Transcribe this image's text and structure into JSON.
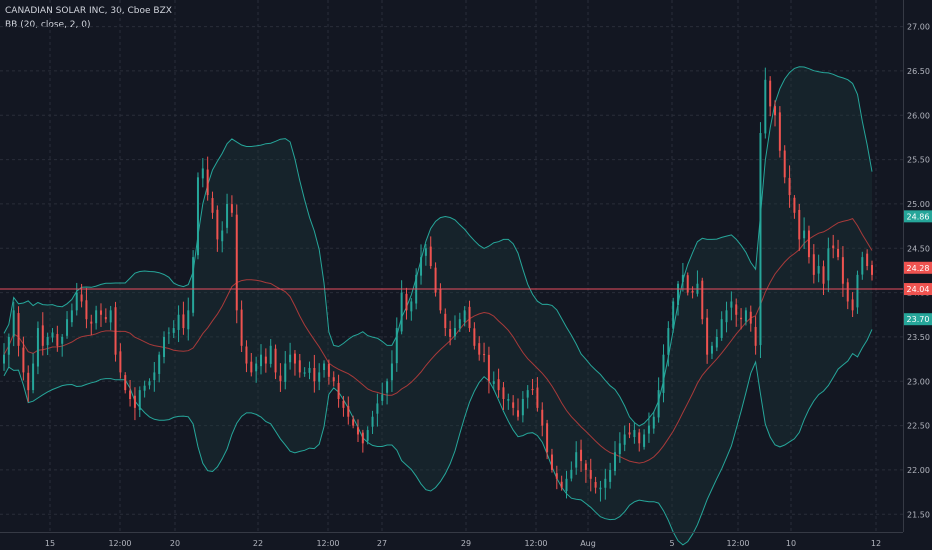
{
  "legend": {
    "symbol": "CANADIAN SOLAR INC, 30, Cboe BZX",
    "indicator": "BB (20, close, 2, 0)"
  },
  "colors": {
    "background": "#131722",
    "grid": "#2a2e39",
    "up": "#26a69a",
    "down": "#ef5350",
    "band": "#26a69a",
    "basis": "#a83a3a",
    "band_fill": "#1d3a3c",
    "price_line": "#e84c5f",
    "axis_text": "#b2b5be"
  },
  "chart_data": {
    "type": "candlestick",
    "y_range": [
      21.3,
      27.3
    ],
    "y_ticks": [
      "21.50",
      "22.00",
      "22.50",
      "23.00",
      "23.50",
      "24.00",
      "24.50",
      "25.00",
      "25.50",
      "26.00",
      "26.50",
      "27.00"
    ],
    "x_ticks": [
      "15",
      "12:00",
      "20",
      "22",
      "12:00",
      "27",
      "29",
      "12:00",
      "Aug",
      "5",
      "12:00",
      "10",
      "12"
    ],
    "price_labels": [
      {
        "text": "24.86",
        "value": 24.86,
        "color": "#26a69a"
      },
      {
        "text": "24.28",
        "value": 24.28,
        "color": "#ef5350"
      },
      {
        "text": "24.04",
        "value": 24.04,
        "color": "#ef5350"
      },
      {
        "text": "23.70",
        "value": 23.7,
        "color": "#26a69a"
      }
    ],
    "last_price": 24.04,
    "bars": 180,
    "close": [
      23.3,
      23.5,
      23.8,
      23.4,
      23.1,
      22.9,
      23.2,
      23.6,
      23.4,
      23.5,
      23.55,
      23.4,
      23.5,
      23.7,
      23.8,
      24.0,
      23.9,
      23.7,
      23.65,
      23.8,
      23.75,
      23.7,
      23.8,
      23.3,
      23.1,
      22.9,
      22.8,
      22.7,
      22.9,
      22.95,
      23.0,
      23.1,
      23.3,
      23.5,
      23.55,
      23.6,
      23.75,
      23.6,
      23.8,
      24.4,
      25.3,
      25.4,
      25.1,
      24.9,
      24.6,
      24.7,
      25.0,
      24.9,
      23.8,
      23.4,
      23.2,
      23.1,
      23.2,
      23.3,
      23.2,
      23.4,
      23.1,
      23.0,
      23.2,
      23.3,
      23.2,
      23.1,
      23.1,
      23.15,
      23.0,
      23.1,
      23.2,
      23.05,
      23.0,
      22.8,
      22.7,
      22.6,
      22.5,
      22.4,
      22.3,
      22.45,
      22.6,
      22.75,
      22.85,
      23.0,
      23.2,
      23.6,
      24.0,
      23.8,
      23.9,
      24.2,
      24.4,
      24.5,
      24.3,
      24.0,
      23.8,
      23.6,
      23.5,
      23.6,
      23.7,
      23.8,
      23.6,
      23.4,
      23.3,
      23.3,
      23.0,
      23.0,
      22.9,
      22.8,
      22.8,
      22.7,
      22.6,
      22.8,
      22.9,
      22.9,
      22.7,
      22.5,
      22.2,
      22.0,
      21.9,
      21.8,
      21.9,
      22.0,
      22.2,
      22.1,
      22.0,
      21.9,
      21.8,
      21.8,
      21.9,
      22.0,
      22.2,
      22.3,
      22.4,
      22.4,
      22.45,
      22.3,
      22.4,
      22.5,
      22.6,
      22.9,
      23.3,
      23.6,
      23.9,
      24.1,
      24.2,
      24.0,
      24.0,
      24.1,
      23.7,
      23.3,
      23.4,
      23.5,
      23.7,
      23.8,
      23.9,
      23.75,
      23.7,
      23.8,
      23.65,
      23.4,
      25.8,
      26.4,
      26.1,
      26.0,
      25.6,
      25.3,
      25.1,
      24.9,
      24.6,
      24.7,
      24.4,
      24.2,
      24.3,
      24.1,
      24.5,
      24.5,
      24.4,
      24.1,
      23.9,
      23.8,
      24.2,
      24.4,
      24.3,
      24.2,
      24.1,
      24.04
    ]
  }
}
